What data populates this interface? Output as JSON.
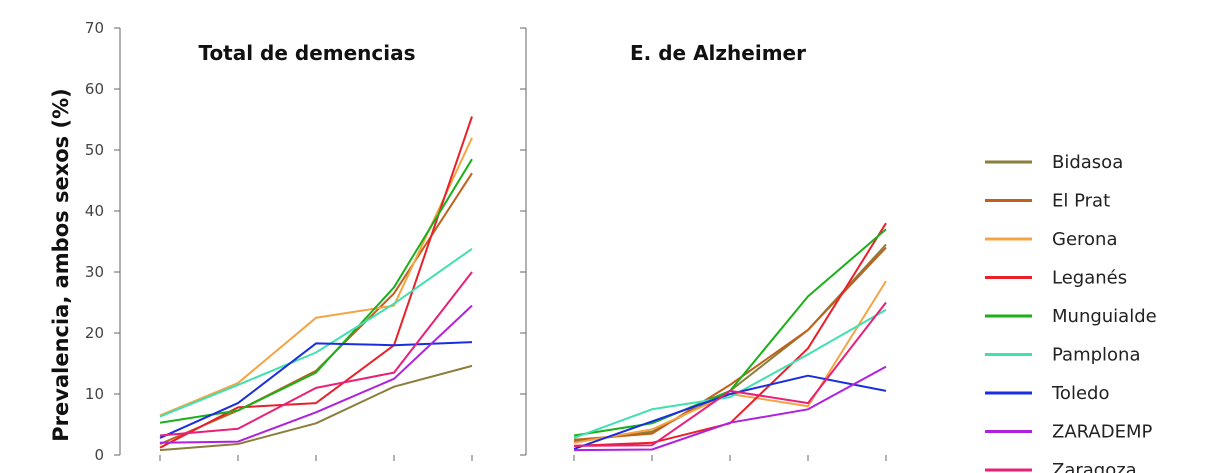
{
  "chart_data": {
    "type": "line",
    "ylabel": "Prevalencia, ambos sexos (%)",
    "ylim": [
      0,
      70
    ],
    "yticks": [
      0,
      10,
      20,
      30,
      40,
      50,
      60,
      70
    ],
    "x": [
      1,
      2,
      3,
      4,
      5
    ],
    "grid": false,
    "legend_position": "right",
    "legend": [
      {
        "name": "Bidasoa",
        "color": "#8b7d3a"
      },
      {
        "name": "El Prat",
        "color": "#c0601c"
      },
      {
        "name": "Gerona",
        "color": "#f4a444"
      },
      {
        "name": "Leganés",
        "color": "#e8202a"
      },
      {
        "name": "Munguialde",
        "color": "#1ab01a"
      },
      {
        "name": "Pamplona",
        "color": "#40e0b0"
      },
      {
        "name": "Toledo",
        "color": "#1a2ee0"
      },
      {
        "name": "ZARADEMP",
        "color": "#b020e0"
      },
      {
        "name": "Zaragoza",
        "color": "#e8207a"
      }
    ],
    "panels": [
      {
        "title": "Total de demencias",
        "series": [
          {
            "name": "Bidasoa",
            "values": [
              0.8,
              1.8,
              5.2,
              11.2,
              14.6
            ]
          },
          {
            "name": "El Prat",
            "values": [
              1.8,
              7.3,
              13.8,
              26.5,
              46.2
            ]
          },
          {
            "name": "Gerona",
            "values": [
              6.5,
              11.8,
              22.5,
              24.5,
              52.0
            ]
          },
          {
            "name": "Leganés",
            "values": [
              1.2,
              7.8,
              8.5,
              18.0,
              55.5
            ]
          },
          {
            "name": "Munguialde",
            "values": [
              5.3,
              7.3,
              13.5,
              27.5,
              48.5
            ]
          },
          {
            "name": "Pamplona",
            "values": [
              6.3,
              11.5,
              16.8,
              24.8,
              33.8
            ]
          },
          {
            "name": "Toledo",
            "values": [
              2.8,
              8.5,
              18.3,
              18.0,
              18.5
            ]
          },
          {
            "name": "ZARADEMP",
            "values": [
              2.0,
              2.2,
              7.0,
              12.5,
              24.5
            ]
          },
          {
            "name": "Zaragoza",
            "values": [
              3.2,
              4.3,
              11.0,
              13.5,
              30.0
            ]
          }
        ]
      },
      {
        "title": "E. de Alzheimer",
        "series": [
          {
            "name": "Bidasoa",
            "values": [
              2.2,
              3.8,
              10.5,
              20.5,
              34.5
            ]
          },
          {
            "name": "El Prat",
            "values": [
              2.5,
              3.5,
              11.5,
              20.5,
              34.0
            ]
          },
          {
            "name": "Gerona",
            "values": [
              2.0,
              4.2,
              10.0,
              8.0,
              28.5
            ]
          },
          {
            "name": "Leganés",
            "values": [
              1.5,
              2.0,
              5.2,
              17.5,
              38.0
            ]
          },
          {
            "name": "Munguialde",
            "values": [
              3.2,
              5.2,
              10.5,
              26.0,
              37.0
            ]
          },
          {
            "name": "Pamplona",
            "values": [
              2.8,
              7.5,
              9.5,
              16.5,
              23.8
            ]
          },
          {
            "name": "Toledo",
            "values": [
              1.0,
              5.5,
              10.0,
              13.0,
              10.5
            ]
          },
          {
            "name": "ZARADEMP",
            "values": [
              0.8,
              0.9,
              5.3,
              7.5,
              14.5
            ]
          },
          {
            "name": "Zaragoza",
            "values": [
              1.5,
              1.6,
              10.5,
              8.5,
              25.0
            ]
          }
        ]
      }
    ]
  }
}
